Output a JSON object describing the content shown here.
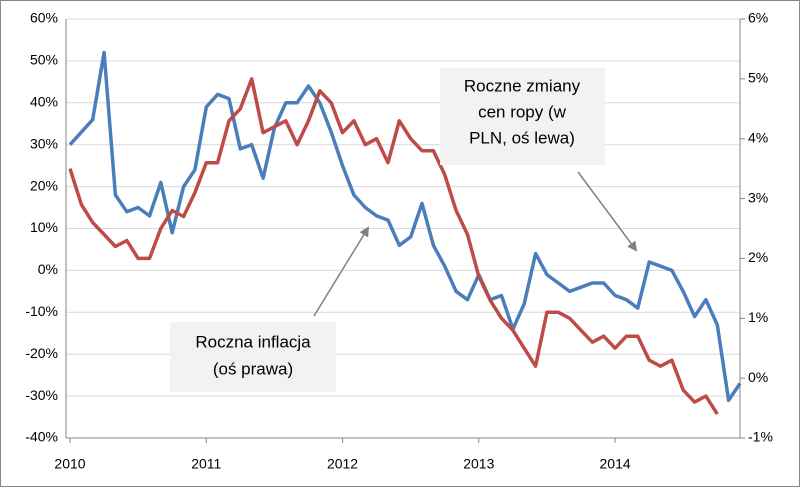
{
  "chart_data": {
    "type": "line",
    "categories": [
      "2010",
      null,
      null,
      null,
      null,
      null,
      null,
      null,
      null,
      null,
      null,
      null,
      "2011",
      null,
      null,
      null,
      null,
      null,
      null,
      null,
      null,
      null,
      null,
      null,
      "2012",
      null,
      null,
      null,
      null,
      null,
      null,
      null,
      null,
      null,
      null,
      null,
      "2013",
      null,
      null,
      null,
      null,
      null,
      null,
      null,
      null,
      null,
      null,
      null,
      "2014",
      null,
      null,
      null,
      null,
      null,
      null,
      null,
      null,
      null,
      null,
      null
    ],
    "series": [
      {
        "name": "Roczne zmiany cen ropy (w PLN, oś lewa)",
        "color": "#4a7ebb",
        "axis": "y",
        "values": [
          30,
          33,
          36,
          52,
          18,
          14,
          15,
          13,
          21,
          9,
          20,
          24,
          39,
          42,
          41,
          29,
          30,
          22,
          34,
          40,
          40,
          44,
          40,
          33,
          25,
          18,
          15,
          13,
          12,
          6,
          8,
          16,
          6,
          1,
          -5,
          -7,
          -1,
          -7,
          -6,
          -14,
          -8,
          4,
          -1,
          -3,
          -5,
          -4,
          -3,
          -3,
          -6,
          -7,
          -9,
          2,
          1,
          0,
          -5,
          -11,
          -7,
          -13,
          -31,
          -27
        ]
      },
      {
        "name": "Roczna inflacja (oś prawa)",
        "color": "#be4b48",
        "axis": "y2",
        "values": [
          3.5,
          2.9,
          2.6,
          2.4,
          2.2,
          2.3,
          2.0,
          2.0,
          2.5,
          2.8,
          2.7,
          3.1,
          3.6,
          3.6,
          4.3,
          4.5,
          5.0,
          4.1,
          4.2,
          4.3,
          3.9,
          4.3,
          4.8,
          4.6,
          4.1,
          4.3,
          3.9,
          4.0,
          3.6,
          4.3,
          4.0,
          3.8,
          3.8,
          3.4,
          2.8,
          2.4,
          1.7,
          1.3,
          1.0,
          0.8,
          0.5,
          0.2,
          1.1,
          1.1,
          1.0,
          0.8,
          0.6,
          0.7,
          0.5,
          0.7,
          0.7,
          0.3,
          0.2,
          0.3,
          -0.2,
          -0.4,
          -0.3,
          -0.6,
          null,
          null
        ]
      }
    ],
    "ylim": [
      -40,
      60
    ],
    "yticks": [
      {
        "value": -40,
        "label": "-40%"
      },
      {
        "value": -30,
        "label": "-30%"
      },
      {
        "value": -20,
        "label": "-20%"
      },
      {
        "value": -10,
        "label": "-10%"
      },
      {
        "value": 0,
        "label": "0%"
      },
      {
        "value": 10,
        "label": "10%"
      },
      {
        "value": 20,
        "label": "20%"
      },
      {
        "value": 30,
        "label": "30%"
      },
      {
        "value": 40,
        "label": "40%"
      },
      {
        "value": 50,
        "label": "50%"
      },
      {
        "value": 60,
        "label": "60%"
      }
    ],
    "y2lim": [
      -1,
      6
    ],
    "y2ticks": [
      {
        "value": -1,
        "label": "-1%"
      },
      {
        "value": 0,
        "label": "0%"
      },
      {
        "value": 1,
        "label": "1%"
      },
      {
        "value": 2,
        "label": "2%"
      },
      {
        "value": 3,
        "label": "3%"
      },
      {
        "value": 4,
        "label": "4%"
      },
      {
        "value": 5,
        "label": "5%"
      },
      {
        "value": 6,
        "label": "6%"
      }
    ],
    "grid": true,
    "annotations": [
      {
        "lines": [
          "Roczne zmiany",
          "cen ropy (w",
          "PLN, oś lewa)"
        ]
      },
      {
        "lines": [
          "Roczna inflacja",
          "(oś prawa)"
        ]
      }
    ]
  }
}
